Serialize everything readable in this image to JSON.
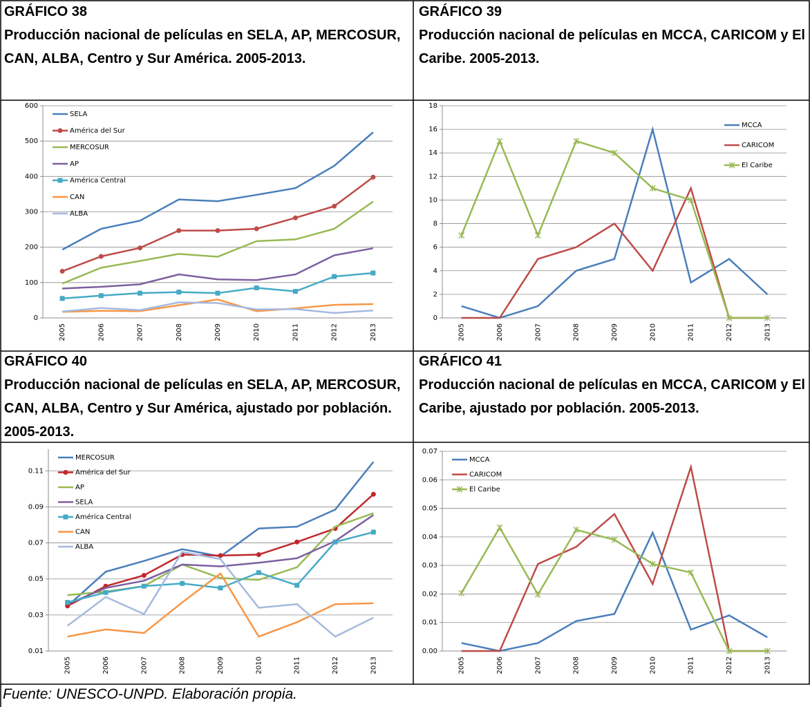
{
  "chart_data": [
    {
      "type": "line",
      "label": "GRÁFICO 38",
      "title": "Producción nacional de películas en SELA, AP, MERCOSUR, CAN, ALBA, Centro y Sur América. 2005-2013.",
      "categories": [
        "2005",
        "2006",
        "2007",
        "2008",
        "2009",
        "2010",
        "2011",
        "2012",
        "2013"
      ],
      "ylim": [
        0,
        600
      ],
      "yticks": [
        0,
        100,
        200,
        300,
        400,
        500,
        600
      ],
      "grid": true,
      "legend": "upper left",
      "series": [
        {
          "name": "SELA",
          "color": "#4a7ebb",
          "values": [
            193,
            252,
            275,
            335,
            330,
            348,
            367,
            430,
            525
          ]
        },
        {
          "name": "América del Sur",
          "color": "#be4b48",
          "marker": "circle",
          "values": [
            132,
            174,
            198,
            247,
            247,
            252,
            283,
            316,
            398
          ]
        },
        {
          "name": "MERCOSUR",
          "color": "#98b954",
          "values": [
            97,
            142,
            161,
            181,
            173,
            217,
            222,
            252,
            329
          ]
        },
        {
          "name": "AP",
          "color": "#7d5fa0",
          "values": [
            83,
            88,
            95,
            123,
            109,
            107,
            123,
            177,
            197
          ]
        },
        {
          "name": "América Central",
          "color": "#46aac5",
          "marker": "square",
          "values": [
            55,
            63,
            70,
            73,
            70,
            85,
            75,
            117,
            127
          ]
        },
        {
          "name": "CAN",
          "color": "#f79646",
          "values": [
            17,
            20,
            19,
            36,
            52,
            19,
            27,
            37,
            39
          ]
        },
        {
          "name": "ALBA",
          "color": "#a5b9de",
          "values": [
            18,
            28,
            22,
            44,
            42,
            24,
            25,
            14,
            21
          ]
        }
      ]
    },
    {
      "type": "line",
      "label": "GRÁFICO 39",
      "title": "Producción nacional de películas en MCCA, CARICOM y El Caribe. 2005-2013.",
      "categories": [
        "2005",
        "2006",
        "2007",
        "2008",
        "2009",
        "2010",
        "2011",
        "2012",
        "2013"
      ],
      "ylim": [
        0,
        18
      ],
      "yticks": [
        0,
        2,
        4,
        6,
        8,
        10,
        12,
        14,
        16,
        18
      ],
      "grid": true,
      "legend": "right",
      "series": [
        {
          "name": "MCCA",
          "color": "#4a7ebb",
          "values": [
            1,
            0,
            1,
            4,
            5,
            16,
            3,
            5,
            2
          ]
        },
        {
          "name": "CARICOM",
          "color": "#be4b48",
          "values": [
            0,
            0,
            5,
            6,
            8,
            4,
            11,
            0,
            0
          ]
        },
        {
          "name": "El Caribe",
          "color": "#98b954",
          "marker": "star",
          "values": [
            7,
            15,
            7,
            15,
            14,
            11,
            10,
            0,
            0
          ]
        }
      ]
    },
    {
      "type": "line",
      "label": "GRÁFICO 40",
      "title": "Producción nacional de películas en SELA, AP, MERCOSUR, CAN, ALBA, Centro y Sur América, ajustado por población. 2005-2013.",
      "categories": [
        "2005",
        "2006",
        "2007",
        "2008",
        "2009",
        "2010",
        "2011",
        "2012",
        "2013"
      ],
      "ylim": [
        0.01,
        0.122
      ],
      "yticks": [
        0.01,
        0.03,
        0.05,
        0.07,
        0.09,
        0.11
      ],
      "grid": true,
      "legend": "upper left",
      "series": [
        {
          "name": "MERCOSUR",
          "color": "#4a7ebb",
          "values": [
            0.035,
            0.054,
            0.06,
            0.0665,
            0.0625,
            0.078,
            0.079,
            0.0885,
            0.115
          ]
        },
        {
          "name": "América del Sur",
          "color": "#c0282b",
          "marker": "circle",
          "values": [
            0.035,
            0.046,
            0.052,
            0.0635,
            0.063,
            0.0635,
            0.0705,
            0.078,
            0.097
          ]
        },
        {
          "name": "AP",
          "color": "#98b954",
          "values": [
            0.041,
            0.043,
            0.046,
            0.058,
            0.0505,
            0.0495,
            0.0565,
            0.079,
            0.0865
          ]
        },
        {
          "name": "SELA",
          "color": "#7d5fa0",
          "values": [
            0.036,
            0.045,
            0.049,
            0.058,
            0.057,
            0.059,
            0.0615,
            0.071,
            0.0855
          ]
        },
        {
          "name": "América Central",
          "color": "#46aac5",
          "marker": "square",
          "values": [
            0.037,
            0.0425,
            0.046,
            0.0475,
            0.045,
            0.0535,
            0.0465,
            0.0705,
            0.076
          ]
        },
        {
          "name": "CAN",
          "color": "#f79646",
          "values": [
            0.018,
            0.022,
            0.02,
            0.037,
            0.053,
            0.018,
            0.026,
            0.036,
            0.0365
          ]
        },
        {
          "name": "ALBA",
          "color": "#a5b9de",
          "values": [
            0.024,
            0.04,
            0.0305,
            0.065,
            0.061,
            0.034,
            0.036,
            0.018,
            0.0285
          ]
        }
      ]
    },
    {
      "type": "line",
      "label": "GRÁFICO 41",
      "title": "Producción nacional de películas en MCCA, CARICOM y El Caribe, ajustado por población. 2005-2013.",
      "categories": [
        "2005",
        "2006",
        "2007",
        "2008",
        "2009",
        "2010",
        "2011",
        "2012",
        "2013"
      ],
      "ylim": [
        0,
        0.07
      ],
      "yticks": [
        {
          "value": 0,
          "label": "0.00"
        },
        0.01,
        0.02,
        0.03,
        0.04,
        0.05,
        0.06,
        0.07
      ],
      "grid": true,
      "legend": "upper left",
      "series": [
        {
          "name": "MCCA",
          "color": "#4a7ebb",
          "values": [
            0.0028,
            0,
            0.0028,
            0.0105,
            0.013,
            0.0415,
            0.0075,
            0.0125,
            0.0048
          ]
        },
        {
          "name": "CARICOM",
          "color": "#be4b48",
          "values": [
            0,
            0,
            0.0305,
            0.0365,
            0.048,
            0.0235,
            0.0645,
            0,
            0
          ]
        },
        {
          "name": "El Caribe",
          "color": "#98b954",
          "marker": "star",
          "values": [
            0.0203,
            0.0433,
            0.0198,
            0.0425,
            0.039,
            0.0305,
            0.0275,
            0,
            0
          ]
        }
      ]
    }
  ],
  "source": "Fuente: UNESCO-UNPD. Elaboración propia."
}
